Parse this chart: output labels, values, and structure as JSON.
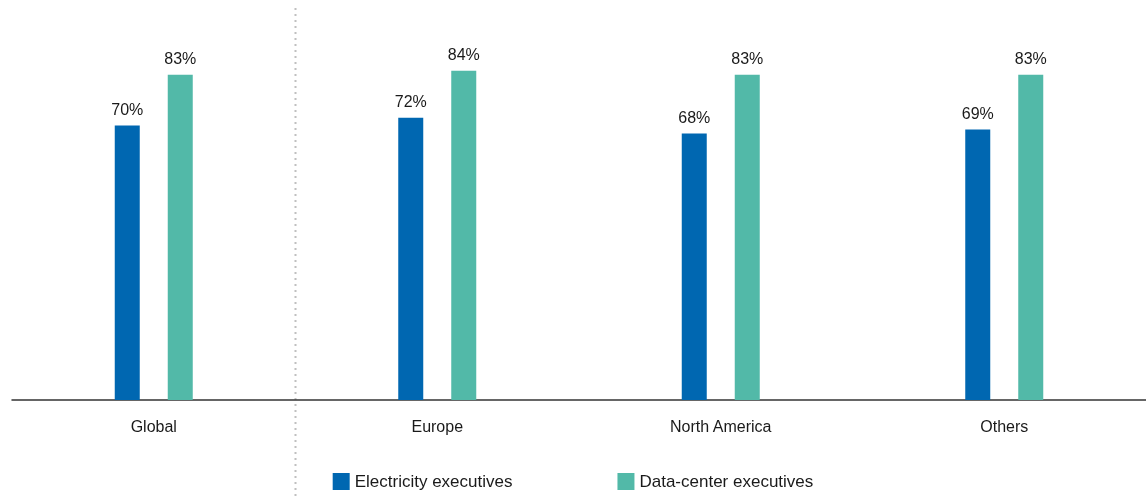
{
  "chart_data": {
    "type": "bar",
    "categories": [
      "Global",
      "Europe",
      "North America",
      "Others"
    ],
    "series": [
      {
        "name": "Electricity executives",
        "color": "#0067b1",
        "values": [
          70,
          72,
          68,
          69
        ],
        "value_labels": [
          "70%",
          "72%",
          "68%",
          "69%"
        ]
      },
      {
        "name": "Data-center executives",
        "color": "#52b9a8",
        "values": [
          83,
          84,
          83,
          83
        ],
        "value_labels": [
          "83%",
          "84%",
          "83%",
          "83%"
        ]
      }
    ],
    "ylim": [
      0,
      100
    ],
    "tick_labels": "x",
    "grid": false,
    "legend": "bottom"
  }
}
